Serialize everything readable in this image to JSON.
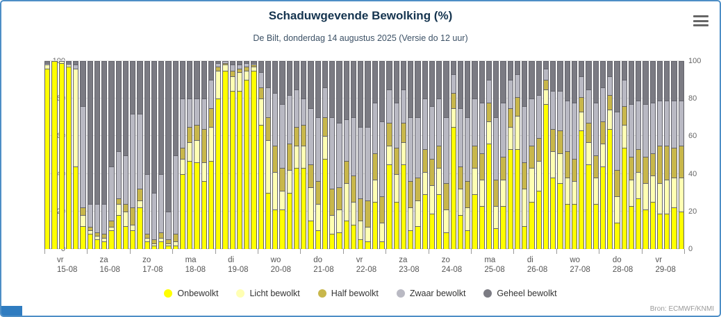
{
  "header": {
    "title": "Schaduwgevende Bewolking (%)",
    "subtitle": "De Bilt, donderdag 14 augustus 2025 (Versie do 12 uur)"
  },
  "credits": "Bron: ECMWF/KNMI",
  "chart_data": {
    "type": "bar",
    "stacked": true,
    "title": "Schaduwgevende Bewolking (%)",
    "subtitle": "De Bilt, donderdag 14 augustus 2025 (Versie do 12 uur)",
    "ylim": [
      0,
      100
    ],
    "yticks": [
      0,
      20,
      40,
      60,
      80,
      100
    ],
    "grid": true,
    "legend_position": "bottom",
    "series": [
      {
        "name": "Onbewolkt",
        "color": "#ffff00"
      },
      {
        "name": "Licht bewolkt",
        "color": "#ffffb3"
      },
      {
        "name": "Half bewolkt",
        "color": "#c8b74b"
      },
      {
        "name": "Zwaar bewolkt",
        "color": "#b9b9c3"
      },
      {
        "name": "Geheel bewolkt",
        "color": "#7b7b83"
      }
    ],
    "days": [
      {
        "weekday": "vr",
        "date": "15-08",
        "bars": [
          [
            96,
            2,
            0,
            1,
            1
          ],
          [
            100,
            0,
            0,
            0,
            0
          ],
          [
            99,
            1,
            0,
            0,
            0
          ],
          [
            97,
            1,
            0,
            1,
            1
          ],
          [
            44,
            52,
            0,
            2,
            2
          ],
          [
            12,
            6,
            4,
            54,
            24
          ]
        ]
      },
      {
        "weekday": "za",
        "date": "16-08",
        "bars": [
          [
            8,
            2,
            2,
            12,
            76
          ],
          [
            5,
            2,
            2,
            15,
            76
          ],
          [
            4,
            2,
            2,
            16,
            76
          ],
          [
            10,
            2,
            3,
            29,
            56
          ],
          [
            18,
            6,
            3,
            25,
            48
          ],
          [
            12,
            8,
            4,
            26,
            50
          ]
        ]
      },
      {
        "weekday": "zo",
        "date": "17-08",
        "bars": [
          [
            10,
            3,
            9,
            50,
            28
          ],
          [
            22,
            4,
            6,
            40,
            28
          ],
          [
            4,
            2,
            2,
            32,
            60
          ],
          [
            2,
            1,
            2,
            25,
            70
          ],
          [
            4,
            2,
            3,
            31,
            60
          ],
          [
            2,
            1,
            2,
            15,
            80
          ]
        ]
      },
      {
        "weekday": "ma",
        "date": "18-08",
        "bars": [
          [
            2,
            2,
            4,
            42,
            50
          ],
          [
            40,
            8,
            6,
            26,
            20
          ],
          [
            47,
            10,
            8,
            15,
            20
          ],
          [
            46,
            12,
            8,
            14,
            20
          ],
          [
            36,
            10,
            18,
            16,
            20
          ],
          [
            47,
            18,
            10,
            15,
            10
          ]
        ]
      },
      {
        "weekday": "di",
        "date": "19-08",
        "bars": [
          [
            80,
            15,
            2,
            2,
            1
          ],
          [
            95,
            3,
            1,
            1,
            0
          ],
          [
            84,
            8,
            3,
            3,
            2
          ],
          [
            84,
            10,
            2,
            2,
            2
          ],
          [
            90,
            5,
            2,
            2,
            1
          ],
          [
            95,
            2,
            1,
            1,
            1
          ]
        ]
      },
      {
        "weekday": "wo",
        "date": "20-08",
        "bars": [
          [
            66,
            14,
            6,
            8,
            6
          ],
          [
            30,
            28,
            12,
            16,
            14
          ],
          [
            21,
            20,
            14,
            28,
            17
          ],
          [
            21,
            10,
            12,
            34,
            23
          ],
          [
            30,
            12,
            14,
            26,
            18
          ],
          [
            43,
            12,
            10,
            20,
            15
          ]
        ]
      },
      {
        "weekday": "do",
        "date": "21-08",
        "bars": [
          [
            43,
            12,
            11,
            14,
            20
          ],
          [
            15,
            18,
            12,
            30,
            25
          ],
          [
            10,
            14,
            12,
            34,
            30
          ],
          [
            48,
            12,
            10,
            16,
            14
          ],
          [
            8,
            10,
            14,
            38,
            30
          ],
          [
            9,
            12,
            12,
            34,
            33
          ]
        ]
      },
      {
        "weekday": "vr",
        "date": "22-08",
        "bars": [
          [
            15,
            20,
            12,
            22,
            31
          ],
          [
            13,
            12,
            14,
            31,
            30
          ],
          [
            5,
            10,
            12,
            38,
            35
          ],
          [
            4,
            8,
            14,
            39,
            35
          ],
          [
            25,
            12,
            14,
            27,
            22
          ],
          [
            4,
            10,
            14,
            40,
            32
          ]
        ]
      },
      {
        "weekday": "za",
        "date": "23-08",
        "bars": [
          [
            45,
            10,
            12,
            18,
            15
          ],
          [
            25,
            15,
            14,
            24,
            22
          ],
          [
            45,
            12,
            10,
            18,
            15
          ],
          [
            10,
            12,
            14,
            34,
            30
          ],
          [
            12,
            14,
            12,
            32,
            30
          ],
          [
            29,
            12,
            12,
            27,
            20
          ]
        ]
      },
      {
        "weekday": "zo",
        "date": "24-08",
        "bars": [
          [
            19,
            15,
            14,
            28,
            24
          ],
          [
            29,
            14,
            12,
            25,
            20
          ],
          [
            9,
            12,
            14,
            35,
            30
          ],
          [
            65,
            10,
            8,
            10,
            7
          ],
          [
            18,
            14,
            12,
            31,
            25
          ],
          [
            10,
            12,
            14,
            34,
            30
          ]
        ]
      },
      {
        "weekday": "ma",
        "date": "25-08",
        "bars": [
          [
            29,
            14,
            12,
            25,
            20
          ],
          [
            23,
            14,
            14,
            27,
            22
          ],
          [
            56,
            12,
            10,
            12,
            10
          ],
          [
            11,
            12,
            14,
            33,
            30
          ],
          [
            23,
            14,
            12,
            29,
            22
          ],
          [
            53,
            12,
            10,
            15,
            10
          ]
        ]
      },
      {
        "weekday": "di",
        "date": "26-08",
        "bars": [
          [
            53,
            18,
            10,
            12,
            7
          ],
          [
            12,
            20,
            14,
            30,
            24
          ],
          [
            25,
            18,
            12,
            25,
            20
          ],
          [
            31,
            16,
            12,
            23,
            18
          ],
          [
            77,
            8,
            5,
            6,
            4
          ],
          [
            38,
            14,
            12,
            20,
            16
          ]
        ]
      },
      {
        "weekday": "wo",
        "date": "27-08",
        "bars": [
          [
            35,
            16,
            12,
            21,
            16
          ],
          [
            24,
            14,
            14,
            27,
            21
          ],
          [
            24,
            12,
            12,
            30,
            22
          ],
          [
            63,
            10,
            8,
            11,
            8
          ],
          [
            45,
            12,
            10,
            18,
            15
          ],
          [
            24,
            14,
            12,
            28,
            22
          ]
        ]
      },
      {
        "weekday": "do",
        "date": "28-08",
        "bars": [
          [
            44,
            12,
            12,
            18,
            14
          ],
          [
            64,
            10,
            8,
            10,
            8
          ],
          [
            14,
            14,
            14,
            31,
            27
          ],
          [
            54,
            12,
            10,
            14,
            10
          ],
          [
            23,
            14,
            12,
            28,
            23
          ],
          [
            27,
            14,
            12,
            26,
            21
          ]
        ]
      },
      {
        "weekday": "vr",
        "date": "29-08",
        "bars": [
          [
            21,
            14,
            14,
            28,
            23
          ],
          [
            25,
            14,
            12,
            27,
            22
          ],
          [
            19,
            16,
            20,
            24,
            21
          ],
          [
            19,
            18,
            18,
            24,
            21
          ],
          [
            22,
            16,
            16,
            25,
            21
          ],
          [
            20,
            18,
            17,
            24,
            21
          ]
        ]
      }
    ]
  }
}
